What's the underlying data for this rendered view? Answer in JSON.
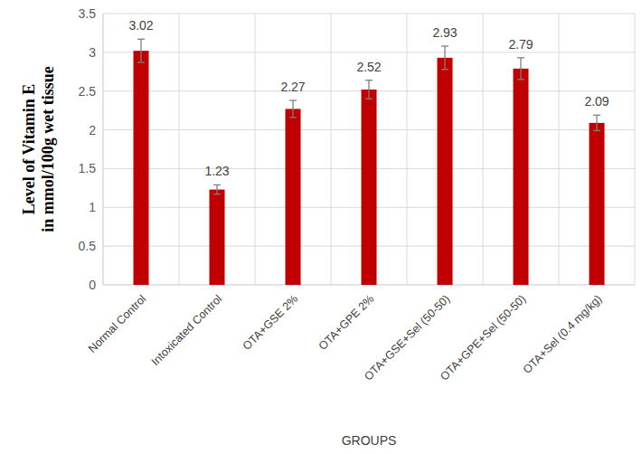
{
  "chart_data": {
    "type": "bar",
    "categories": [
      "Normal Control",
      "Intoxicated Control",
      "OTA+GSE 2%",
      "OTA+GPE 2%",
      "OTA+GSE+Sel (50-50)",
      "OTA+GPE+Sel (50-50)",
      "OTA+Sel (0.4 mg/kg)"
    ],
    "values": [
      3.02,
      1.23,
      2.27,
      2.52,
      2.93,
      2.79,
      2.09
    ],
    "errors": [
      0.15,
      0.06,
      0.11,
      0.12,
      0.15,
      0.14,
      0.1
    ],
    "color": "#c00000",
    "x_label": "GROUPS",
    "y_label": "Level of Vitamin E in mmol/100g wet tissue",
    "ylim": [
      0,
      3.5
    ],
    "yticks": [
      0,
      0.5,
      1,
      1.5,
      2,
      2.5,
      3,
      3.5
    ],
    "grid": true,
    "data_labels": true
  }
}
